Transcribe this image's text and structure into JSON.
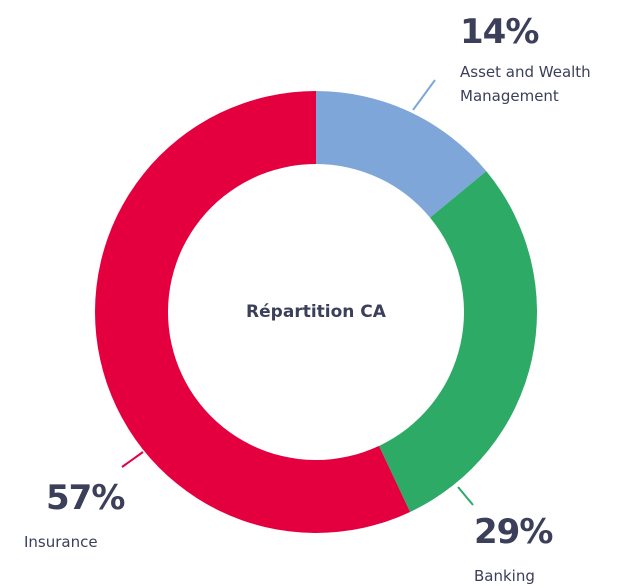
{
  "chart_data": {
    "type": "donut",
    "title": "Répartition CA",
    "categories": [
      "Asset and Wealth Management",
      "Banking",
      "Insurance"
    ],
    "values": [
      14,
      29,
      57
    ],
    "value_labels": [
      "14%",
      "29%",
      "57%"
    ],
    "colors": [
      "#7fa6d8",
      "#2eaa67",
      "#e4003f"
    ]
  }
}
